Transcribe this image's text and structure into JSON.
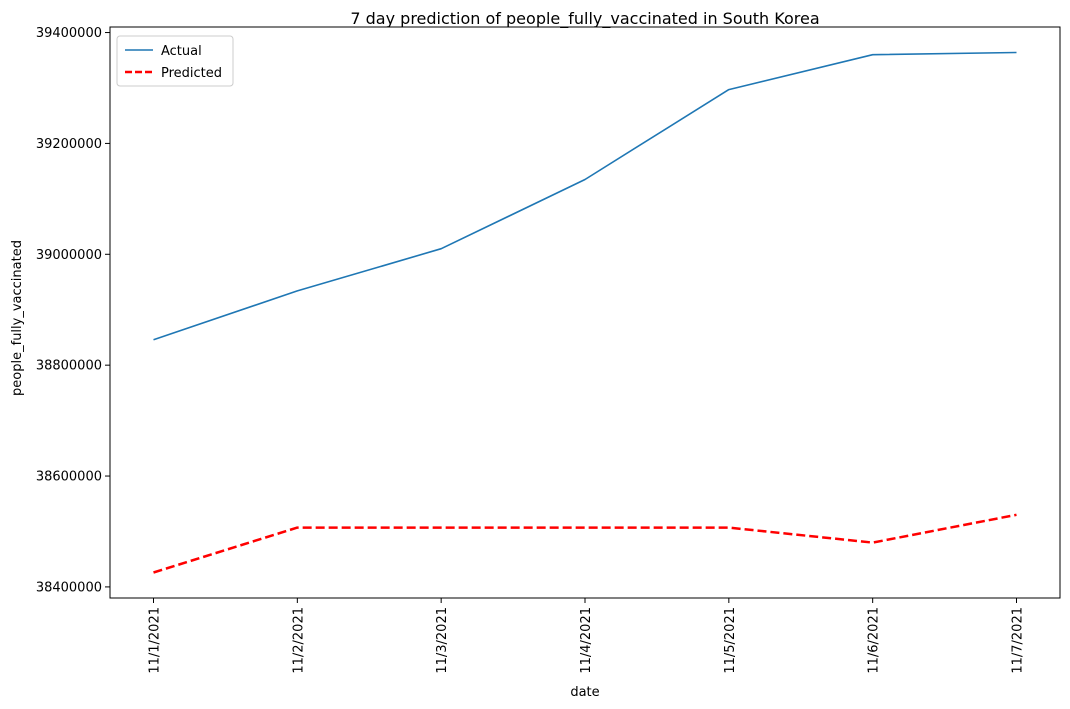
{
  "chart_data": {
    "type": "line",
    "title": "7 day prediction of people_fully_vaccinated in South Korea",
    "xlabel": "date",
    "ylabel": "people_fully_vaccinated",
    "categories": [
      "11/1/2021",
      "11/2/2021",
      "11/3/2021",
      "11/4/2021",
      "11/5/2021",
      "11/6/2021",
      "11/7/2021"
    ],
    "yticks": [
      38400000,
      38600000,
      38800000,
      39000000,
      39200000,
      39400000
    ],
    "ylim": [
      38380000,
      39410000
    ],
    "grid": false,
    "legend_position": "top-left",
    "series": [
      {
        "name": "Actual",
        "color": "#1f77b4",
        "style": "solid",
        "values": [
          38846000,
          38934000,
          39010000,
          39135000,
          39297000,
          39360000,
          39364000
        ]
      },
      {
        "name": "Predicted",
        "color": "#ff0000",
        "style": "dashed",
        "values": [
          38426000,
          38507000,
          38507000,
          38507000,
          38507000,
          38480000,
          38530000
        ]
      }
    ]
  }
}
